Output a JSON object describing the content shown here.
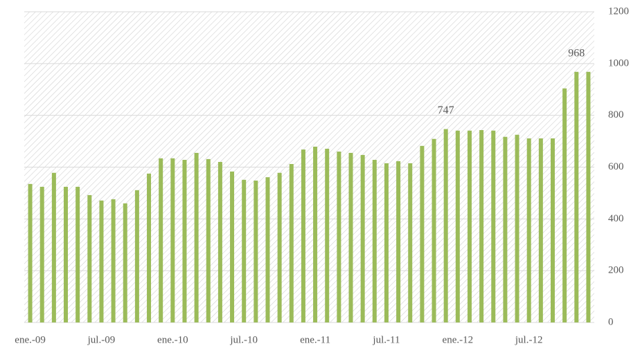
{
  "chart_data": {
    "type": "bar",
    "categories": [
      "ene.-09",
      null,
      null,
      null,
      null,
      null,
      "jul.-09",
      null,
      null,
      null,
      null,
      null,
      "ene.-10",
      null,
      null,
      null,
      null,
      null,
      "jul.-10",
      null,
      null,
      null,
      null,
      null,
      "ene.-11",
      null,
      null,
      null,
      null,
      null,
      "jul.-11",
      null,
      null,
      null,
      null,
      null,
      "ene.-12",
      null,
      null,
      null,
      null,
      null,
      "jul.-12",
      null,
      null,
      null,
      null,
      null
    ],
    "values": [
      535,
      524,
      578,
      524,
      524,
      492,
      471,
      476,
      460,
      511,
      575,
      634,
      634,
      628,
      655,
      631,
      620,
      583,
      551,
      548,
      561,
      578,
      612,
      668,
      679,
      671,
      660,
      655,
      647,
      628,
      615,
      623,
      615,
      682,
      709,
      747,
      741,
      741,
      743,
      741,
      717,
      725,
      711,
      711,
      711,
      904,
      968,
      968
    ],
    "value_labels": [
      null,
      null,
      null,
      null,
      null,
      null,
      null,
      null,
      null,
      null,
      null,
      null,
      null,
      null,
      null,
      null,
      null,
      null,
      null,
      null,
      null,
      null,
      null,
      null,
      null,
      null,
      null,
      null,
      null,
      null,
      null,
      null,
      null,
      null,
      null,
      "747",
      null,
      null,
      null,
      null,
      null,
      null,
      null,
      null,
      null,
      null,
      "968",
      null
    ],
    "color": "#9bbb59",
    "ylim": [
      0,
      1200
    ],
    "yticks": [
      0,
      200,
      400,
      600,
      800,
      1000,
      1200
    ],
    "grid": true,
    "y_axis_side": "right"
  }
}
